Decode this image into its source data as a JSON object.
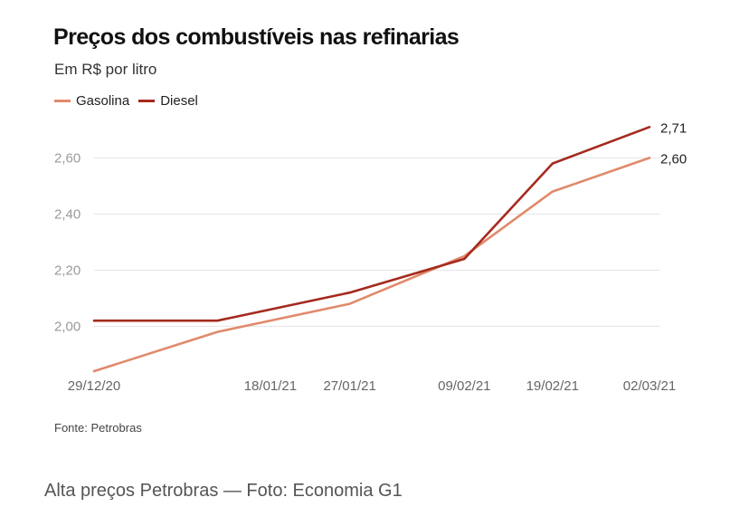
{
  "title": "Preços dos combustíveis nas refinarias",
  "subtitle": "Em R$ por litro",
  "source": "Fonte: Petrobras",
  "caption": "Alta preços Petrobras — Foto: Economia G1",
  "colors": {
    "gasolina": "#e08a6c",
    "diesel": "#a52a1e",
    "grid": "#e4e4e4",
    "tick": "#9a9a9a"
  },
  "chart_data": {
    "type": "line",
    "categories": [
      "29/12/20",
      "18/01/21",
      "27/01/21",
      "09/02/21",
      "19/02/21",
      "02/03/21"
    ],
    "x": [
      0,
      20,
      29,
      42,
      52,
      63
    ],
    "yticks": [
      "2,00",
      "2,20",
      "2,40",
      "2,60"
    ],
    "ytick_values": [
      2.0,
      2.2,
      2.4,
      2.6
    ],
    "ylim": [
      1.84,
      2.74
    ],
    "grid": true,
    "legend": "top-left",
    "series": [
      {
        "name": "Gasolina",
        "color": "#e08a6c",
        "points": [
          [
            0,
            1.84
          ],
          [
            14,
            1.98
          ],
          [
            29,
            2.08
          ],
          [
            42,
            2.25
          ],
          [
            52,
            2.48
          ],
          [
            63,
            2.6
          ]
        ],
        "end_label": "2,60"
      },
      {
        "name": "Diesel",
        "color": "#a52a1e",
        "points": [
          [
            0,
            2.02
          ],
          [
            14,
            2.02
          ],
          [
            29,
            2.12
          ],
          [
            42,
            2.24
          ],
          [
            52,
            2.58
          ],
          [
            63,
            2.71
          ]
        ],
        "end_label": "2,71"
      }
    ]
  }
}
